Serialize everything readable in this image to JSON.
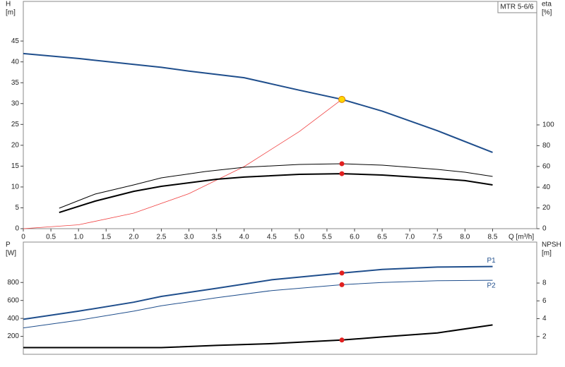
{
  "chart_data": [
    {
      "type": "line",
      "title": "MTR 5-6/6",
      "ylabel": [
        "H",
        "[m]"
      ],
      "y2label": [
        "eta",
        "[%]"
      ],
      "xlabel": "Q [m³/h]",
      "xlim": [
        0,
        9.3
      ],
      "xticks": [
        0,
        0.5,
        {
          "value": 1,
          "label": "1.0"
        },
        1.5,
        {
          "value": 2,
          "label": "2.0"
        },
        2.5,
        {
          "value": 3,
          "label": "3.0"
        },
        3.5,
        {
          "value": 4,
          "label": "4.0"
        },
        4.5,
        {
          "value": 5,
          "label": "5.0"
        },
        5.5,
        {
          "value": 6,
          "label": "6.0"
        },
        6.5,
        {
          "value": 7,
          "label": "7.0"
        },
        7.5,
        {
          "value": 8,
          "label": "8.0"
        },
        8.5
      ],
      "ylim": [
        0,
        54.5
      ],
      "yticks": [
        0,
        5,
        10,
        15,
        20,
        25,
        30,
        35,
        40,
        45
      ],
      "y2lim": [
        0,
        219
      ],
      "y2ticks": [
        0,
        20,
        40,
        60,
        80,
        100
      ],
      "series": [
        {
          "color": "#1f4e8c",
          "width": 2,
          "x": [
            0,
            1,
            2,
            2.5,
            3,
            4,
            5,
            5.77,
            6.5,
            7.5,
            8.5
          ],
          "values": [
            42,
            40.8,
            39.4,
            38.7,
            37.8,
            36.2,
            33.2,
            31,
            28.2,
            23.5,
            18.3
          ]
        },
        {
          "color": "#f04040",
          "width": 0.8,
          "x": [
            0,
            1,
            2,
            3,
            4,
            5,
            5.77
          ],
          "values": [
            0,
            0.93,
            3.72,
            8.4,
            14.9,
            23.3,
            31
          ]
        },
        {
          "color": "#000000",
          "width": 1,
          "axis": "y2",
          "x": [
            0.65,
            1.3,
            2,
            2.5,
            3.3,
            4,
            5,
            5.77,
            6.5,
            7.5,
            8,
            8.5
          ],
          "values": [
            19.7,
            33.3,
            42.2,
            49,
            55.1,
            59.2,
            61.9,
            62.6,
            61.2,
            57.1,
            54.4,
            50.3
          ]
        },
        {
          "color": "#000000",
          "width": 2,
          "axis": "y2",
          "x": [
            0.65,
            1.3,
            2,
            2.5,
            3.5,
            4,
            5,
            5.77,
            6.5,
            7.5,
            8,
            8.5
          ],
          "values": [
            15.6,
            26.5,
            36,
            40.8,
            47.6,
            49.7,
            52.4,
            53,
            51.7,
            48.3,
            46.3,
            42.2
          ]
        },
        {
          "color": "#ffd700",
          "marker": "dot",
          "x": [
            5.77
          ],
          "values": [
            31
          ]
        },
        {
          "color": "#e02020",
          "marker": "dot",
          "axis": "y2",
          "x": [
            5.77,
            5.77
          ],
          "values": [
            62.6,
            53
          ]
        }
      ]
    },
    {
      "type": "line",
      "ylabel": [
        "P",
        "[W]"
      ],
      "y2label": [
        "NPSH",
        "[m]"
      ],
      "xlim": [
        0,
        9.3
      ],
      "ylim": [
        0,
        1250
      ],
      "yticks": [
        200,
        400,
        600,
        800
      ],
      "y2lim": [
        0,
        12.6
      ],
      "y2ticks": [
        2,
        4,
        6,
        8
      ],
      "series": [
        {
          "name": "P1",
          "color": "#1f4e8c",
          "width": 2,
          "x": [
            0,
            1,
            2,
            2.5,
            3.5,
            4.5,
            5.77,
            6.5,
            7.5,
            8.5
          ],
          "values": [
            390,
            480,
            580,
            645,
            735,
            830,
            905,
            945,
            972,
            978
          ]
        },
        {
          "name": "P2",
          "color": "#1f4e8c",
          "width": 1,
          "x": [
            0,
            1,
            2,
            2.5,
            3.5,
            4.5,
            5.77,
            6.5,
            7.5,
            8.5
          ],
          "values": [
            294,
            380,
            480,
            540,
            630,
            710,
            775,
            800,
            820,
            825
          ]
        },
        {
          "color": "#000000",
          "width": 2,
          "axis": "y2",
          "x": [
            0,
            2.5,
            3.5,
            4.5,
            5.77,
            6.5,
            7.5,
            8.5
          ],
          "values": [
            0.75,
            0.75,
            1,
            1.2,
            1.6,
            1.95,
            2.4,
            3.3
          ]
        },
        {
          "color": "#e02020",
          "marker": "dot",
          "x": [
            5.77,
            5.77
          ],
          "values": [
            905,
            775
          ]
        },
        {
          "color": "#e02020",
          "marker": "dot",
          "axis": "y2",
          "x": [
            5.77
          ],
          "values": [
            1.6
          ]
        }
      ]
    }
  ]
}
